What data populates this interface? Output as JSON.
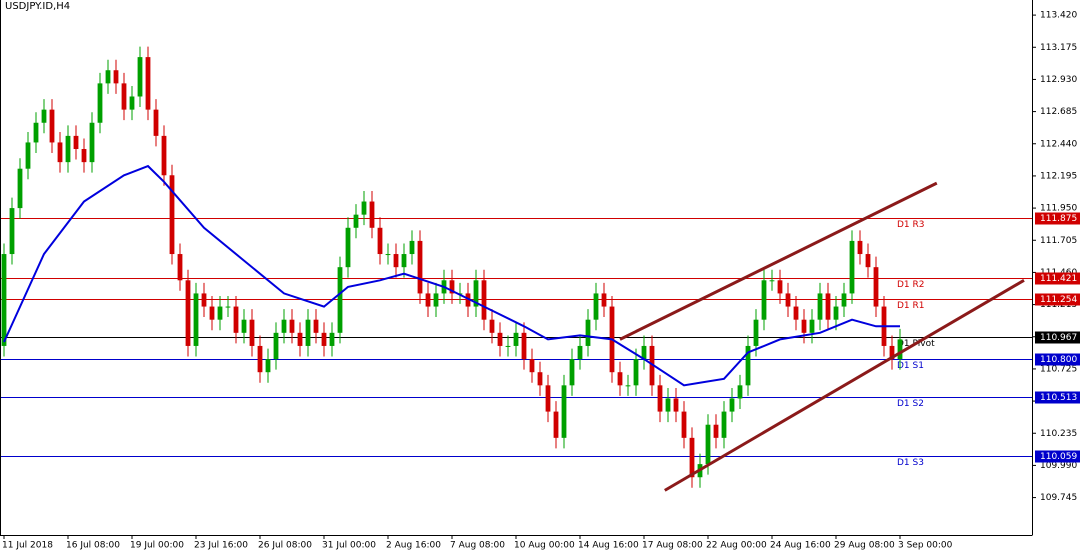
{
  "chart_data": {
    "type": "candlestick",
    "title": "USDJPY.ID,H4",
    "up_color": "#00a000",
    "down_color": "#d00000",
    "open": [
      110.9,
      111.6,
      111.95,
      112.25,
      112.45,
      112.6,
      112.7,
      112.45,
      112.3,
      112.5,
      112.4,
      112.3,
      112.6,
      112.9,
      113.0,
      112.9,
      112.7,
      112.8,
      113.1,
      112.7,
      112.5,
      112.2,
      111.6,
      111.4,
      110.9,
      111.3,
      111.2,
      111.1,
      111.2,
      111.2,
      111.0,
      111.1,
      110.9,
      110.7,
      110.8,
      111.0,
      111.1,
      111.0,
      110.9,
      111.1,
      111.0,
      110.9,
      111.0,
      111.5,
      111.8,
      111.9,
      112.0,
      111.8,
      111.6,
      111.6,
      111.5,
      111.6,
      111.7,
      111.3,
      111.2,
      111.3,
      111.4,
      111.3,
      111.3,
      111.2,
      111.4,
      111.1,
      111.0,
      110.9,
      110.9,
      111.0,
      110.8,
      110.7,
      110.6,
      110.4,
      110.2,
      110.6,
      110.8,
      110.9,
      111.1,
      111.3,
      111.2,
      110.7,
      110.6,
      110.6,
      110.8,
      110.9,
      110.6,
      110.4,
      110.5,
      110.4,
      110.2,
      109.9,
      110.0,
      110.3,
      110.2,
      110.4,
      110.5,
      110.6,
      110.9,
      111.1,
      111.4,
      111.4,
      111.3,
      111.2,
      111.1,
      111.0,
      111.1,
      111.3,
      111.1,
      111.2,
      111.3,
      111.7,
      111.6,
      111.5,
      111.2,
      110.9,
      110.8
    ],
    "high": [
      111.68,
      112.03,
      112.33,
      112.53,
      112.68,
      112.78,
      112.78,
      112.53,
      112.58,
      112.58,
      112.48,
      112.68,
      112.98,
      113.08,
      113.08,
      112.98,
      112.88,
      113.18,
      113.18,
      112.78,
      112.58,
      112.28,
      111.68,
      111.48,
      111.38,
      111.38,
      111.28,
      111.28,
      111.28,
      111.28,
      111.18,
      111.18,
      110.98,
      110.88,
      111.08,
      111.18,
      111.18,
      111.08,
      111.18,
      111.18,
      111.08,
      111.08,
      111.58,
      111.88,
      111.98,
      112.08,
      112.08,
      111.88,
      111.68,
      111.68,
      111.68,
      111.78,
      111.78,
      111.38,
      111.38,
      111.48,
      111.48,
      111.38,
      111.38,
      111.48,
      111.48,
      111.18,
      111.08,
      110.98,
      111.08,
      111.08,
      110.88,
      110.78,
      110.68,
      110.48,
      110.68,
      110.88,
      110.98,
      111.18,
      111.38,
      111.38,
      111.28,
      110.78,
      110.68,
      110.88,
      110.98,
      110.98,
      110.68,
      110.58,
      110.58,
      110.48,
      110.28,
      110.08,
      110.38,
      110.38,
      110.48,
      110.58,
      110.68,
      110.98,
      111.18,
      111.48,
      111.48,
      111.48,
      111.38,
      111.28,
      111.18,
      111.18,
      111.38,
      111.38,
      111.28,
      111.38,
      111.78,
      111.78,
      111.68,
      111.58,
      111.28,
      110.98,
      111.03
    ],
    "low": [
      110.82,
      111.52,
      111.87,
      112.17,
      112.37,
      112.52,
      112.37,
      112.22,
      112.22,
      112.32,
      112.22,
      112.22,
      112.52,
      112.82,
      112.82,
      112.62,
      112.62,
      112.72,
      112.62,
      112.42,
      112.12,
      111.52,
      111.32,
      110.82,
      110.82,
      111.12,
      111.02,
      111.02,
      111.12,
      110.92,
      110.92,
      110.82,
      110.62,
      110.62,
      110.72,
      110.92,
      110.92,
      110.82,
      110.82,
      110.92,
      110.82,
      110.82,
      110.92,
      111.42,
      111.72,
      111.82,
      111.72,
      111.52,
      111.52,
      111.42,
      111.42,
      111.52,
      111.22,
      111.12,
      111.12,
      111.22,
      111.22,
      111.22,
      111.12,
      111.12,
      111.02,
      110.92,
      110.82,
      110.82,
      110.82,
      110.72,
      110.62,
      110.52,
      110.32,
      110.12,
      110.12,
      110.52,
      110.72,
      110.82,
      111.02,
      111.12,
      110.62,
      110.52,
      110.52,
      110.52,
      110.72,
      110.52,
      110.32,
      110.32,
      110.32,
      110.12,
      109.82,
      109.82,
      109.92,
      110.12,
      110.12,
      110.32,
      110.42,
      110.52,
      110.82,
      111.02,
      111.32,
      111.22,
      111.12,
      111.02,
      110.92,
      110.92,
      111.02,
      111.02,
      111.02,
      111.12,
      111.22,
      111.52,
      111.42,
      111.12,
      110.82,
      110.72,
      110.72
    ],
    "close": [
      111.6,
      111.95,
      112.25,
      112.45,
      112.6,
      112.7,
      112.45,
      112.3,
      112.5,
      112.4,
      112.3,
      112.6,
      112.9,
      113.0,
      112.9,
      112.7,
      112.8,
      113.1,
      112.7,
      112.5,
      112.2,
      111.6,
      111.4,
      110.9,
      111.3,
      111.2,
      111.1,
      111.2,
      111.2,
      111.0,
      111.1,
      110.9,
      110.7,
      110.8,
      111.0,
      111.1,
      111.0,
      110.9,
      111.1,
      111.0,
      110.9,
      111.0,
      111.5,
      111.8,
      111.9,
      112.0,
      111.8,
      111.6,
      111.6,
      111.5,
      111.6,
      111.7,
      111.3,
      111.2,
      111.3,
      111.4,
      111.3,
      111.3,
      111.2,
      111.4,
      111.1,
      111.0,
      110.9,
      110.9,
      111.0,
      110.8,
      110.7,
      110.6,
      110.4,
      110.2,
      110.6,
      110.8,
      110.9,
      111.1,
      111.3,
      111.2,
      110.7,
      110.6,
      110.6,
      110.8,
      110.9,
      110.6,
      110.4,
      110.5,
      110.4,
      110.2,
      109.9,
      110.0,
      110.3,
      110.2,
      110.4,
      110.5,
      110.6,
      110.9,
      111.1,
      111.4,
      111.4,
      111.3,
      111.2,
      111.1,
      111.0,
      111.1,
      111.3,
      111.1,
      111.2,
      111.3,
      111.7,
      111.6,
      111.5,
      111.2,
      110.9,
      110.8,
      110.95
    ],
    "moving_average": {
      "color": "#0000dd",
      "x": [
        0,
        5,
        10,
        15,
        18,
        20,
        25,
        30,
        35,
        40,
        43,
        47,
        50,
        55,
        60,
        65,
        68,
        72,
        76,
        80,
        85,
        90,
        93,
        97,
        102,
        106,
        109,
        112
      ],
      "values": [
        110.93,
        111.6,
        112.0,
        112.2,
        112.27,
        112.15,
        111.8,
        111.55,
        111.3,
        111.2,
        111.35,
        111.4,
        111.45,
        111.35,
        111.2,
        111.05,
        110.95,
        110.98,
        110.95,
        110.8,
        110.6,
        110.65,
        110.85,
        110.95,
        111.0,
        111.1,
        111.05,
        111.05
      ]
    },
    "levels": [
      {
        "name": "D1 R3",
        "value": 111.875,
        "label": "111.875",
        "color": "#d00000"
      },
      {
        "name": "D1 R2",
        "value": 111.421,
        "label": "111.421",
        "color": "#d00000"
      },
      {
        "name": "D1 R1",
        "value": 111.254,
        "label": "111.254",
        "color": "#d00000"
      },
      {
        "name": "D1 Pivot",
        "value": 110.967,
        "label": "110.967",
        "color": "#000000"
      },
      {
        "name": "D1 S1",
        "value": 110.8,
        "label": "110.800",
        "color": "#0000cc"
      },
      {
        "name": "D1 S2",
        "value": 110.513,
        "label": "110.513",
        "color": "#0000cc"
      },
      {
        "name": "D1 S3",
        "value": 110.059,
        "label": "110.059",
        "color": "#0000cc"
      }
    ],
    "trendlines": {
      "color": "#8b1a1a",
      "lines": [
        {
          "x": [
            77,
            116.6
          ],
          "y": [
            110.95,
            112.14
          ]
        },
        {
          "x": [
            82.6,
            127.5
          ],
          "y": [
            109.8,
            111.4
          ]
        }
      ]
    },
    "xlim": [
      -0.5,
      128.5
    ],
    "xticks": [
      {
        "value": 0,
        "label": "11 Jul 2018"
      },
      {
        "value": 8,
        "label": "16 Jul 08:00"
      },
      {
        "value": 16,
        "label": "19 Jul 00:00"
      },
      {
        "value": 24,
        "label": "23 Jul 16:00"
      },
      {
        "value": 32,
        "label": "26 Jul 08:00"
      },
      {
        "value": 40,
        "label": "31 Jul 00:00"
      },
      {
        "value": 48,
        "label": "2 Aug 16:00"
      },
      {
        "value": 56,
        "label": "7 Aug 08:00"
      },
      {
        "value": 64,
        "label": "10 Aug 00:00"
      },
      {
        "value": 72,
        "label": "14 Aug 16:00"
      },
      {
        "value": 80,
        "label": "17 Aug 08:00"
      },
      {
        "value": 88,
        "label": "22 Aug 00:00"
      },
      {
        "value": 96,
        "label": "24 Aug 16:00"
      },
      {
        "value": 104,
        "label": "29 Aug 08:00"
      },
      {
        "value": 112,
        "label": "3 Sep 00:00"
      }
    ],
    "ylim": [
      109.46,
      113.535
    ],
    "yticks": [
      {
        "value": 113.42,
        "label": "113.420"
      },
      {
        "value": 113.175,
        "label": "113.175"
      },
      {
        "value": 112.93,
        "label": "112.930"
      },
      {
        "value": 112.685,
        "label": "112.685"
      },
      {
        "value": 112.44,
        "label": "112.440"
      },
      {
        "value": 112.195,
        "label": "112.195"
      },
      {
        "value": 111.95,
        "label": "111.950"
      },
      {
        "value": 111.705,
        "label": "111.705"
      },
      {
        "value": 111.46,
        "label": "111.460"
      },
      {
        "value": 111.215,
        "label": "111.215"
      },
      {
        "value": 110.97,
        "label": "110.970"
      },
      {
        "value": 110.725,
        "label": "110.725"
      },
      {
        "value": 110.48,
        "label": "110.480"
      },
      {
        "value": 110.235,
        "label": "110.235"
      },
      {
        "value": 109.99,
        "label": "109.990"
      },
      {
        "value": 109.745,
        "label": "109.745"
      }
    ]
  }
}
